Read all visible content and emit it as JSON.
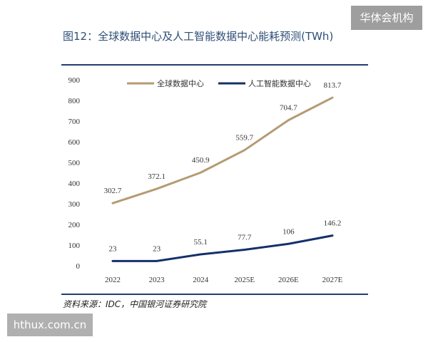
{
  "page": {
    "title": "图12：全球数据中心及人工智能数据中心能耗预测(TWh)",
    "source": "资料来源：IDC，中国银河证券研究院",
    "watermark_top": "华体会机构",
    "watermark_bottom": "hthux.com.cn"
  },
  "chart_data": {
    "type": "line",
    "categories": [
      "2022",
      "2023",
      "2024",
      "2025E",
      "2026E",
      "2027E"
    ],
    "series": [
      {
        "name": "全球数据中心",
        "values": [
          302.7,
          372.1,
          450.9,
          559.7,
          704.7,
          813.7
        ],
        "labels": [
          "302.7",
          "372.1",
          "450.9",
          "559.7",
          "704.7",
          "813.7"
        ],
        "color": "#b59b73"
      },
      {
        "name": "人工智能数据中心",
        "values": [
          23,
          23,
          55.1,
          77.7,
          106,
          146.2
        ],
        "labels": [
          "23",
          "23",
          "55.1",
          "77.7",
          "106",
          "146.2"
        ],
        "color": "#14306a"
      }
    ],
    "yticks": [
      "0",
      "100",
      "200",
      "300",
      "400",
      "500",
      "600",
      "700",
      "800",
      "900"
    ],
    "ylim": [
      0,
      900
    ],
    "grid": false,
    "legend_position": "top"
  }
}
